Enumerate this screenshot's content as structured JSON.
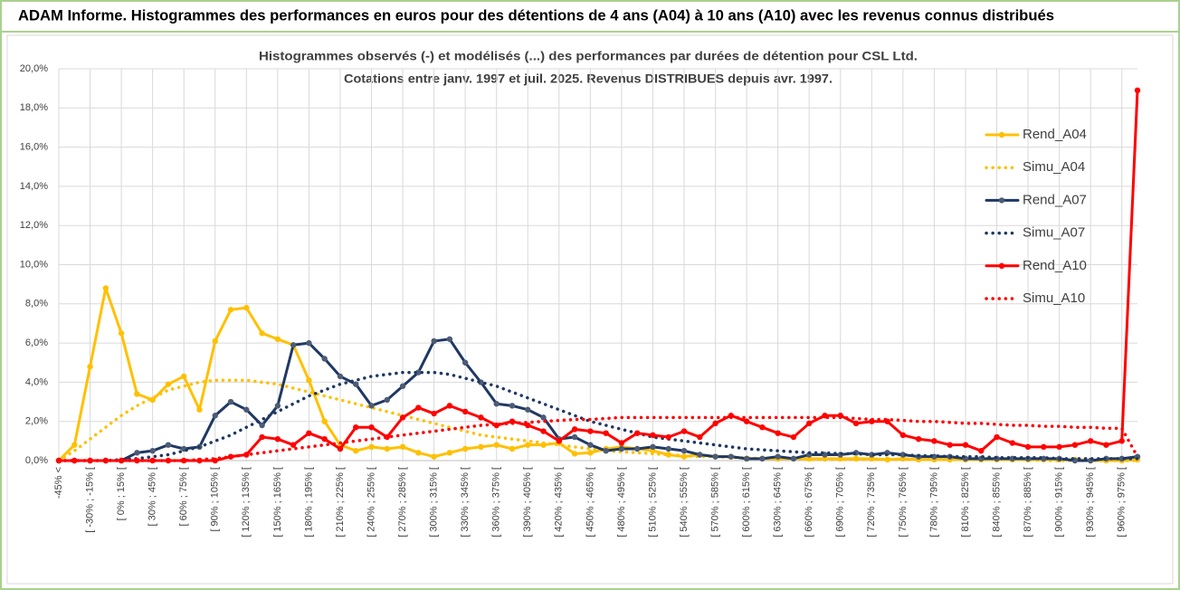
{
  "chart_data": {
    "type": "line",
    "title": "ADAM Informe. Histogrammes des performances en euros pour des détentions de 4 ans (A04) à 10 ans (A10) avec les revenus connus distribués",
    "subtitle": [
      "Histogrammes observés (-) et modélisés (...)  des performances par durées de détention pour CSL Ltd.",
      "Cotations entre janv. 1997 et juil. 2025. Revenus DISTRIBUES depuis avr. 1997."
    ],
    "categories": [
      "-45% <",
      null,
      "[ -30% ; -15% [",
      null,
      "[ 0% ; 15% [",
      null,
      "[ 30% ; 45% [",
      null,
      "[ 60% ; 75% [",
      null,
      "[ 90% ; 105% [",
      null,
      "[ 120% ; 135% [",
      null,
      "[ 150% ; 165% [",
      null,
      "[ 180% ; 195% [",
      null,
      "[ 210% ; 225% [",
      null,
      "[ 240% ; 255% [",
      null,
      "[ 270% ; 285% [",
      null,
      "[ 300% ; 315% [",
      null,
      "[ 330% ; 345% [",
      null,
      "[ 360% ; 375% [",
      null,
      "[ 390% ; 405% [",
      null,
      "[ 420% ; 435% [",
      null,
      "[ 450% ; 465% [",
      null,
      "[ 480% ; 495% [",
      null,
      "[ 510% ; 525% [",
      null,
      "[ 540% ; 555% [",
      null,
      "[ 570% ; 585% [",
      null,
      "[ 600% ; 615% [",
      null,
      "[ 630% ; 645% [",
      null,
      "[ 660% ; 675% [",
      null,
      "[ 690% ; 705% [",
      null,
      "[ 720% ; 735% [",
      null,
      "[ 750% ; 765% [",
      null,
      "[ 780% ; 795% [",
      null,
      "[ 810% ; 825% [",
      null,
      "[ 840% ; 855% [",
      null,
      "[ 870% ; 885% [",
      null,
      "[ 900% ; 915% [",
      null,
      "[ 930% ; 945% [",
      null,
      "[ 960% ; 975% [",
      null
    ],
    "ylim": [
      0,
      20
    ],
    "yticks": [
      {
        "value": 0,
        "label": "0,0%"
      },
      {
        "value": 2,
        "label": "2,0%"
      },
      {
        "value": 4,
        "label": "4,0%"
      },
      {
        "value": 6,
        "label": "6,0%"
      },
      {
        "value": 8,
        "label": "8,0%"
      },
      {
        "value": 10,
        "label": "10,0%"
      },
      {
        "value": 12,
        "label": "12,0%"
      },
      {
        "value": 14,
        "label": "14,0%"
      },
      {
        "value": 16,
        "label": "16,0%"
      },
      {
        "value": 18,
        "label": "18,0%"
      },
      {
        "value": 20,
        "label": "20,0%"
      }
    ],
    "grid": true,
    "legend": "right",
    "series": [
      {
        "name": "Rend_A04",
        "color": "#ffc000",
        "marker_color": "#ffc000",
        "dash": "solid",
        "values": [
          0,
          0.8,
          4.8,
          8.8,
          6.5,
          3.4,
          3.1,
          3.9,
          4.3,
          2.6,
          6.1,
          7.7,
          7.8,
          6.5,
          6.2,
          5.9,
          4.1,
          2.0,
          0.8,
          0.5,
          0.7,
          0.6,
          0.7,
          0.4,
          0.2,
          0.4,
          0.6,
          0.7,
          0.8,
          0.6,
          0.8,
          0.8,
          0.9,
          0.35,
          0.4,
          0.6,
          0.7,
          0.6,
          0.5,
          0.3,
          0.2,
          0.3,
          0.2,
          0.2,
          0.1,
          0.1,
          0.1,
          0.1,
          0.1,
          0.1,
          0.1,
          0.1,
          0.1,
          0.05,
          0.1,
          0.05,
          0.05,
          0.05,
          0.05,
          0.05,
          0.05,
          0.05,
          0.05,
          0.05,
          0.05,
          0.05,
          0,
          0,
          0,
          0.05
        ]
      },
      {
        "name": "Simu_A04",
        "color": "#ffc000",
        "dash": "dotted",
        "values": [
          0,
          0.5,
          1.1,
          1.7,
          2.3,
          2.8,
          3.2,
          3.6,
          3.8,
          4.0,
          4.1,
          4.1,
          4.1,
          4.0,
          3.9,
          3.7,
          3.5,
          3.3,
          3.1,
          2.9,
          2.7,
          2.5,
          2.3,
          2.1,
          1.9,
          1.7,
          1.5,
          1.3,
          1.2,
          1.1,
          1.0,
          0.9,
          0.8,
          0.7,
          0.6,
          0.5,
          0.45,
          0.4,
          0.35,
          0.3,
          0.25,
          0.2,
          0.2,
          0.15,
          0.15,
          0.1,
          0.1,
          0.1,
          0.05,
          0.05,
          0.05,
          0.05,
          0.05,
          0.05,
          0.05,
          0.05,
          0.05,
          0.05,
          0.05,
          0.05,
          0.05,
          0.05,
          0.05,
          0,
          0,
          0,
          0,
          0,
          0,
          0
        ]
      },
      {
        "name": "Rend_A07",
        "color": "#1f3864",
        "marker_color": "#4d5b75",
        "dash": "solid",
        "values": [
          0,
          0,
          0,
          0,
          0,
          0.4,
          0.5,
          0.8,
          0.6,
          0.7,
          2.3,
          3.0,
          2.6,
          1.8,
          2.8,
          5.9,
          6.0,
          5.2,
          4.3,
          3.9,
          2.8,
          3.1,
          3.8,
          4.5,
          6.1,
          6.2,
          5.0,
          4.0,
          2.9,
          2.8,
          2.6,
          2.2,
          1.1,
          1.2,
          0.8,
          0.5,
          0.6,
          0.6,
          0.7,
          0.6,
          0.5,
          0.3,
          0.2,
          0.2,
          0.1,
          0.1,
          0.2,
          0.1,
          0.3,
          0.3,
          0.3,
          0.4,
          0.3,
          0.4,
          0.3,
          0.2,
          0.2,
          0.2,
          0.1,
          0.1,
          0.1,
          0.1,
          0.1,
          0.1,
          0.1,
          0,
          0,
          0.1,
          0.1,
          0.2
        ]
      },
      {
        "name": "Simu_A07",
        "color": "#1f3864",
        "dash": "dotted",
        "values": [
          0,
          0,
          0,
          0,
          0.05,
          0.1,
          0.2,
          0.3,
          0.5,
          0.7,
          1.0,
          1.3,
          1.7,
          2.1,
          2.5,
          2.9,
          3.3,
          3.6,
          3.9,
          4.1,
          4.3,
          4.4,
          4.5,
          4.5,
          4.5,
          4.4,
          4.2,
          4.0,
          3.8,
          3.5,
          3.2,
          2.9,
          2.6,
          2.3,
          2.0,
          1.8,
          1.6,
          1.4,
          1.2,
          1.1,
          1.0,
          0.9,
          0.8,
          0.7,
          0.6,
          0.55,
          0.5,
          0.45,
          0.4,
          0.4,
          0.35,
          0.35,
          0.3,
          0.3,
          0.3,
          0.25,
          0.25,
          0.2,
          0.2,
          0.2,
          0.15,
          0.15,
          0.15,
          0.15,
          0.1,
          0.1,
          0.1,
          0.1,
          0.1,
          0.1
        ]
      },
      {
        "name": "Rend_A10",
        "color": "#ff0000",
        "marker_color": "#ff0000",
        "dash": "solid",
        "values": [
          0,
          0,
          0,
          0,
          0,
          0,
          0,
          0,
          0,
          0,
          0,
          0.2,
          0.3,
          1.2,
          1.1,
          0.8,
          1.4,
          1.1,
          0.6,
          1.7,
          1.7,
          1.2,
          2.2,
          2.7,
          2.4,
          2.8,
          2.5,
          2.2,
          1.8,
          2.0,
          1.8,
          1.5,
          1.0,
          1.6,
          1.5,
          1.4,
          0.9,
          1.4,
          1.3,
          1.2,
          1.5,
          1.2,
          1.9,
          2.3,
          2.0,
          1.7,
          1.4,
          1.2,
          1.9,
          2.3,
          2.3,
          1.9,
          2.0,
          2.0,
          1.3,
          1.1,
          1.0,
          0.8,
          0.8,
          0.5,
          1.2,
          0.9,
          0.7,
          0.7,
          0.7,
          0.8,
          1.0,
          0.8,
          1.0,
          18.9
        ]
      },
      {
        "name": "Simu_A10",
        "color": "#ff0000",
        "dash": "dotted",
        "values": [
          0,
          0,
          0,
          0,
          0,
          0,
          0,
          0,
          0,
          0.05,
          0.1,
          0.2,
          0.3,
          0.4,
          0.5,
          0.6,
          0.7,
          0.8,
          0.9,
          1.0,
          1.1,
          1.2,
          1.3,
          1.4,
          1.5,
          1.6,
          1.7,
          1.8,
          1.85,
          1.9,
          1.95,
          2.0,
          2.05,
          2.1,
          2.1,
          2.15,
          2.2,
          2.2,
          2.2,
          2.2,
          2.2,
          2.2,
          2.2,
          2.2,
          2.2,
          2.2,
          2.2,
          2.2,
          2.2,
          2.2,
          2.2,
          2.15,
          2.1,
          2.1,
          2.05,
          2.0,
          2.0,
          1.95,
          1.9,
          1.9,
          1.85,
          1.8,
          1.8,
          1.75,
          1.75,
          1.7,
          1.7,
          1.65,
          1.65,
          0.2
        ]
      }
    ]
  }
}
